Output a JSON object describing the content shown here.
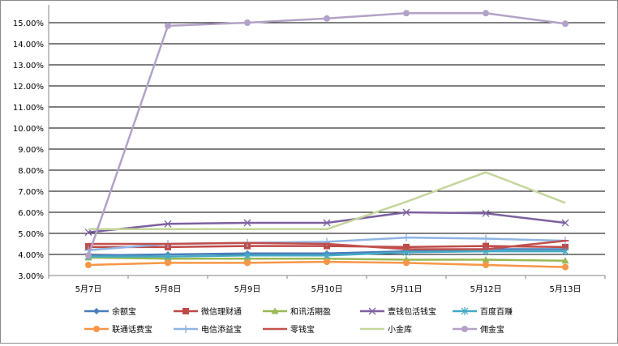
{
  "chart_data": {
    "type": "line",
    "title": "",
    "xlabel": "",
    "ylabel": "",
    "categories": [
      "5月7日",
      "5月8日",
      "5月9日",
      "5月10日",
      "5月11日",
      "5月12日",
      "5月13日"
    ],
    "ylim": [
      3.0,
      15.5
    ],
    "y_ticks": [
      "3.00%",
      "4.00%",
      "5.00%",
      "6.00%",
      "7.00%",
      "8.00%",
      "9.00%",
      "10.00%",
      "11.00%",
      "12.00%",
      "13.00%",
      "14.00%",
      "15.00%"
    ],
    "grid": true,
    "legend_position": "bottom",
    "series": [
      {
        "name": "余额宝",
        "color": "#4a7ebb",
        "marker": "diamond",
        "values": [
          3.95,
          4.0,
          4.05,
          4.05,
          4.15,
          4.25,
          4.25
        ]
      },
      {
        "name": "微信理财通",
        "color": "#be4b48",
        "marker": "square",
        "values": [
          4.35,
          4.35,
          4.4,
          4.4,
          4.35,
          4.4,
          4.35
        ]
      },
      {
        "name": "和讯活期盈",
        "color": "#98b954",
        "marker": "triangle",
        "values": [
          3.85,
          3.8,
          3.8,
          3.8,
          3.75,
          3.75,
          3.7
        ]
      },
      {
        "name": "壹钱包活钱宝",
        "color": "#7d60a0",
        "marker": "x",
        "values": [
          5.05,
          5.45,
          5.5,
          5.5,
          6.0,
          5.95,
          5.5
        ]
      },
      {
        "name": "百度百赚",
        "color": "#46aac5",
        "marker": "star",
        "values": [
          3.9,
          3.9,
          3.95,
          3.95,
          4.1,
          4.15,
          4.15
        ]
      },
      {
        "name": "联通话费宝",
        "color": "#f79646",
        "marker": "circle",
        "values": [
          3.5,
          3.6,
          3.6,
          3.65,
          3.6,
          3.5,
          3.4
        ]
      },
      {
        "name": "电信添益宝",
        "color": "#8eb4e3",
        "marker": "plus",
        "values": [
          4.2,
          4.5,
          4.55,
          4.6,
          4.8,
          4.75,
          4.65
        ]
      },
      {
        "name": "零钱宝",
        "color": "#c0504d",
        "marker": "dash",
        "values": [
          4.5,
          4.5,
          4.55,
          4.5,
          4.25,
          4.25,
          4.65
        ]
      },
      {
        "name": "小金库",
        "color": "#c3d69b",
        "marker": "none",
        "values": [
          5.2,
          5.2,
          5.2,
          5.2,
          6.5,
          7.9,
          6.45
        ]
      },
      {
        "name": "佣金宝",
        "color": "#b3a2c7",
        "marker": "circle",
        "values": [
          3.95,
          14.85,
          15.0,
          15.2,
          15.45,
          15.45,
          14.95
        ]
      }
    ]
  }
}
